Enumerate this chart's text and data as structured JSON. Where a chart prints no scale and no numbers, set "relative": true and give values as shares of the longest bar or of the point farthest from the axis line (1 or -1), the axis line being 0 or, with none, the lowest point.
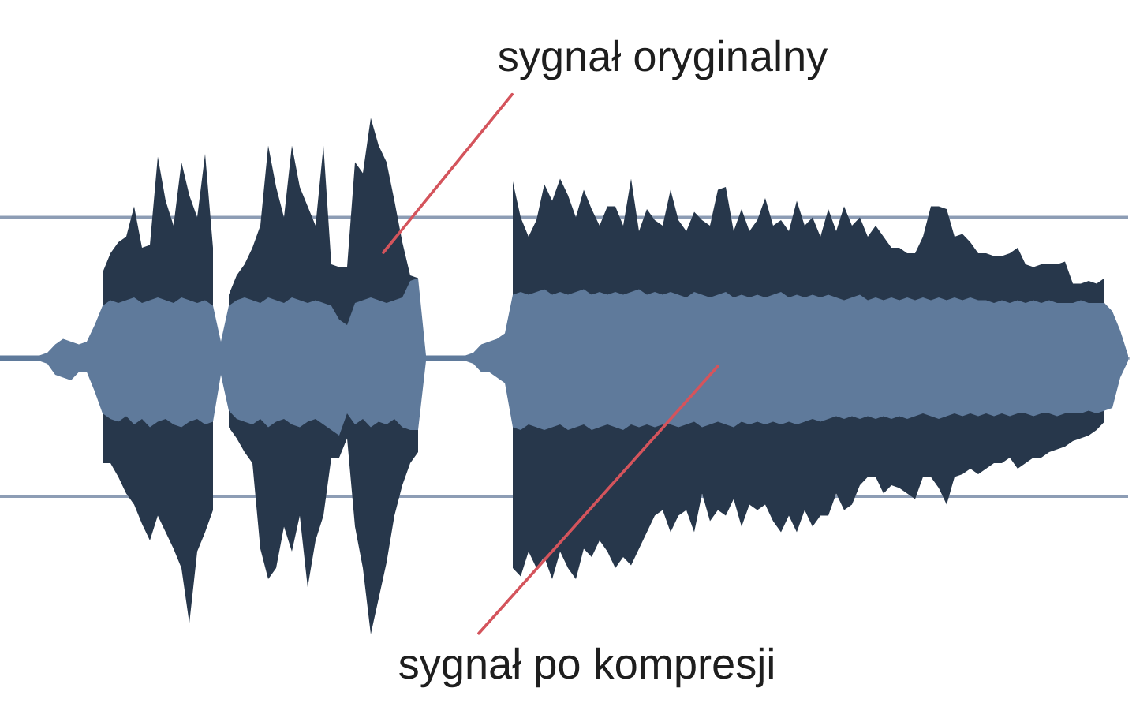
{
  "chart_data": {
    "type": "area",
    "relative": true,
    "categories": [
      null,
      null,
      null,
      null,
      null,
      null,
      null,
      null,
      null,
      null,
      null,
      null,
      null,
      null,
      null,
      null,
      null,
      null,
      null,
      null,
      null,
      null,
      null,
      null,
      null,
      null,
      null,
      null,
      null,
      null,
      null,
      null,
      null,
      null,
      null,
      null,
      null,
      null,
      null,
      null,
      null,
      null,
      null,
      null,
      null,
      null,
      null,
      null,
      null,
      null,
      null,
      null,
      null,
      null,
      null,
      null,
      null,
      null,
      null,
      null,
      null,
      null,
      null,
      null,
      null,
      null,
      null,
      null,
      null,
      null,
      null,
      null,
      null,
      null,
      null,
      null,
      null,
      null,
      null,
      null,
      null,
      null,
      null,
      null,
      null,
      null,
      null,
      null,
      null,
      null,
      null,
      null,
      null,
      null,
      null,
      null,
      null,
      null,
      null,
      null,
      null,
      null,
      null,
      null,
      null,
      null,
      null,
      null,
      null,
      null,
      null,
      null,
      null,
      null,
      null,
      null,
      null,
      null,
      null,
      null,
      null,
      null,
      null,
      null,
      null,
      null,
      null,
      null,
      null,
      null,
      null,
      null,
      null,
      null,
      null,
      null,
      null,
      null,
      null,
      null,
      null,
      null,
      null,
      null
    ],
    "series": [
      {
        "color": "#27374b",
        "values": [
          null,
          null,
          null,
          null,
          null,
          null,
          null,
          null,
          null,
          null,
          null,
          null,
          null,
          0.31,
          0.38,
          0.42,
          0.44,
          0.55,
          0.4,
          0.41,
          0.73,
          0.57,
          0.48,
          0.71,
          0.59,
          0.51,
          0.74,
          0.4,
          null,
          0.23,
          0.3,
          0.34,
          0.4,
          0.48,
          0.77,
          0.62,
          0.51,
          0.77,
          0.62,
          0.55,
          0.48,
          0.77,
          0.34,
          0.33,
          0.33,
          0.71,
          0.67,
          0.87,
          0.77,
          0.71,
          0.57,
          0.42,
          0.3,
          0.29,
          null,
          null,
          null,
          null,
          null,
          null,
          null,
          null,
          null,
          null,
          null,
          0.64,
          0.51,
          0.44,
          0.5,
          0.63,
          0.57,
          0.65,
          0.59,
          0.51,
          0.61,
          0.54,
          0.48,
          0.55,
          0.55,
          0.48,
          0.65,
          0.46,
          0.54,
          0.5,
          0.48,
          0.61,
          0.5,
          0.46,
          0.53,
          0.5,
          0.48,
          0.61,
          0.62,
          0.46,
          0.54,
          0.46,
          0.5,
          0.58,
          0.48,
          0.5,
          0.46,
          0.57,
          0.48,
          0.51,
          0.44,
          0.54,
          0.46,
          0.55,
          0.48,
          0.51,
          0.44,
          0.48,
          0.44,
          0.4,
          0.4,
          0.38,
          0.38,
          0.44,
          0.55,
          0.55,
          0.54,
          0.44,
          0.45,
          0.42,
          0.38,
          0.38,
          0.37,
          0.37,
          0.38,
          0.4,
          0.34,
          0.33,
          0.34,
          0.34,
          0.34,
          0.35,
          0.27,
          0.27,
          0.28,
          0.27,
          0.29,
          null,
          null,
          null
        ]
      },
      {
        "color": "#27374b",
        "values": [
          null,
          null,
          null,
          null,
          null,
          null,
          null,
          null,
          null,
          null,
          null,
          null,
          null,
          -0.38,
          -0.38,
          -0.43,
          -0.49,
          -0.53,
          -0.6,
          -0.66,
          -0.57,
          -0.63,
          -0.69,
          -0.76,
          -0.96,
          -0.7,
          -0.63,
          -0.55,
          null,
          -0.25,
          -0.29,
          -0.34,
          -0.38,
          -0.69,
          -0.8,
          -0.76,
          -0.61,
          -0.7,
          -0.57,
          -0.83,
          -0.66,
          -0.57,
          -0.36,
          -0.36,
          -0.29,
          -0.61,
          -0.76,
          -1,
          -0.87,
          -0.74,
          -0.57,
          -0.46,
          -0.38,
          -0.34,
          null,
          null,
          null,
          null,
          null,
          null,
          null,
          null,
          null,
          null,
          null,
          -0.76,
          -0.79,
          -0.7,
          -0.76,
          -0.72,
          -0.8,
          -0.7,
          -0.76,
          -0.8,
          -0.69,
          -0.72,
          -0.66,
          -0.7,
          -0.76,
          -0.72,
          -0.75,
          -0.69,
          -0.63,
          -0.57,
          -0.55,
          -0.63,
          -0.57,
          -0.55,
          -0.63,
          -0.49,
          -0.59,
          -0.55,
          -0.57,
          -0.51,
          -0.61,
          -0.53,
          -0.55,
          -0.53,
          -0.59,
          -0.63,
          -0.57,
          -0.63,
          -0.55,
          -0.61,
          -0.57,
          -0.57,
          -0.49,
          -0.55,
          -0.53,
          -0.46,
          -0.43,
          -0.43,
          -0.49,
          -0.46,
          -0.47,
          -0.49,
          -0.51,
          -0.43,
          -0.43,
          -0.47,
          -0.53,
          -0.43,
          -0.42,
          -0.4,
          -0.42,
          -0.4,
          -0.38,
          -0.38,
          -0.36,
          -0.4,
          -0.38,
          -0.36,
          -0.36,
          -0.34,
          -0.33,
          -0.32,
          -0.3,
          -0.29,
          -0.28,
          -0.26,
          -0.23,
          null,
          null,
          null
        ]
      },
      {
        "color": "#5f7a9b",
        "values": [
          0.01,
          0.01,
          0.01,
          0.01,
          0.01,
          0.01,
          0.02,
          0.05,
          0.07,
          0.06,
          0.05,
          0.06,
          0.12,
          0.19,
          0.21,
          0.2,
          0.21,
          0.22,
          0.2,
          0.21,
          0.22,
          0.21,
          0.2,
          0.22,
          0.21,
          0.2,
          0.21,
          0.19,
          0.06,
          0.19,
          0.21,
          0.22,
          0.21,
          0.2,
          0.22,
          0.21,
          0.2,
          0.22,
          0.21,
          0.2,
          0.21,
          0.2,
          0.19,
          0.14,
          0.12,
          0.2,
          0.21,
          0.22,
          0.21,
          0.2,
          0.21,
          0.22,
          0.28,
          0.29,
          0.01,
          0.01,
          0.01,
          0.01,
          0.01,
          0.01,
          0.02,
          0.05,
          0.06,
          0.07,
          0.09,
          0.23,
          0.24,
          0.23,
          0.24,
          0.25,
          0.23,
          0.24,
          0.23,
          0.24,
          0.25,
          0.23,
          0.24,
          0.23,
          0.24,
          0.23,
          0.24,
          0.25,
          0.23,
          0.24,
          0.23,
          0.24,
          0.23,
          0.22,
          0.24,
          0.23,
          0.22,
          0.23,
          0.24,
          0.22,
          0.23,
          0.22,
          0.23,
          0.22,
          0.23,
          0.24,
          0.22,
          0.23,
          0.22,
          0.23,
          0.22,
          0.23,
          0.22,
          0.21,
          0.22,
          0.23,
          0.21,
          0.22,
          0.21,
          0.22,
          0.21,
          0.22,
          0.21,
          0.22,
          0.21,
          0.22,
          0.21,
          0.22,
          0.21,
          0.22,
          0.21,
          0.21,
          0.2,
          0.21,
          0.2,
          0.21,
          0.2,
          0.21,
          0.2,
          0.21,
          0.2,
          0.2,
          0.2,
          0.21,
          0.2,
          0.2,
          0.2,
          0.17,
          0.1,
          0.01
        ]
      },
      {
        "color": "#5f7a9b",
        "values": [
          -0.01,
          -0.01,
          -0.01,
          -0.01,
          -0.01,
          -0.01,
          -0.02,
          -0.06,
          -0.07,
          -0.08,
          -0.05,
          -0.05,
          -0.12,
          -0.2,
          -0.22,
          -0.23,
          -0.21,
          -0.24,
          -0.22,
          -0.25,
          -0.23,
          -0.22,
          -0.24,
          -0.25,
          -0.23,
          -0.22,
          -0.24,
          -0.23,
          -0.06,
          -0.19,
          -0.22,
          -0.23,
          -0.24,
          -0.22,
          -0.25,
          -0.23,
          -0.22,
          -0.24,
          -0.25,
          -0.23,
          -0.22,
          -0.24,
          -0.26,
          -0.28,
          -0.2,
          -0.24,
          -0.22,
          -0.25,
          -0.23,
          -0.24,
          -0.22,
          -0.25,
          -0.26,
          -0.26,
          -0.01,
          -0.01,
          -0.01,
          -0.01,
          -0.01,
          -0.01,
          -0.02,
          -0.05,
          -0.05,
          -0.07,
          -0.09,
          -0.25,
          -0.26,
          -0.24,
          -0.25,
          -0.26,
          -0.25,
          -0.24,
          -0.26,
          -0.25,
          -0.24,
          -0.26,
          -0.25,
          -0.24,
          -0.25,
          -0.26,
          -0.24,
          -0.25,
          -0.24,
          -0.25,
          -0.24,
          -0.24,
          -0.25,
          -0.24,
          -0.23,
          -0.25,
          -0.24,
          -0.23,
          -0.24,
          -0.25,
          -0.23,
          -0.24,
          -0.23,
          -0.24,
          -0.23,
          -0.24,
          -0.23,
          -0.24,
          -0.23,
          -0.22,
          -0.23,
          -0.22,
          -0.21,
          -0.22,
          -0.21,
          -0.22,
          -0.21,
          -0.22,
          -0.21,
          -0.22,
          -0.21,
          -0.22,
          -0.21,
          -0.2,
          -0.21,
          -0.22,
          -0.21,
          -0.2,
          -0.21,
          -0.2,
          -0.21,
          -0.2,
          -0.21,
          -0.2,
          -0.21,
          -0.2,
          -0.2,
          -0.21,
          -0.2,
          -0.2,
          -0.21,
          -0.2,
          -0.2,
          -0.2,
          -0.19,
          -0.2,
          -0.19,
          -0.18,
          -0.07,
          -0.01
        ]
      }
    ],
    "ref_lines": [
      {
        "axis": "y",
        "value": 0.51,
        "color": "#8d9db5"
      },
      {
        "axis": "y",
        "value": -0.5,
        "color": "#8d9db5"
      }
    ],
    "annotations": [
      "sygnał oryginalny",
      "sygnał po kompresji"
    ]
  }
}
